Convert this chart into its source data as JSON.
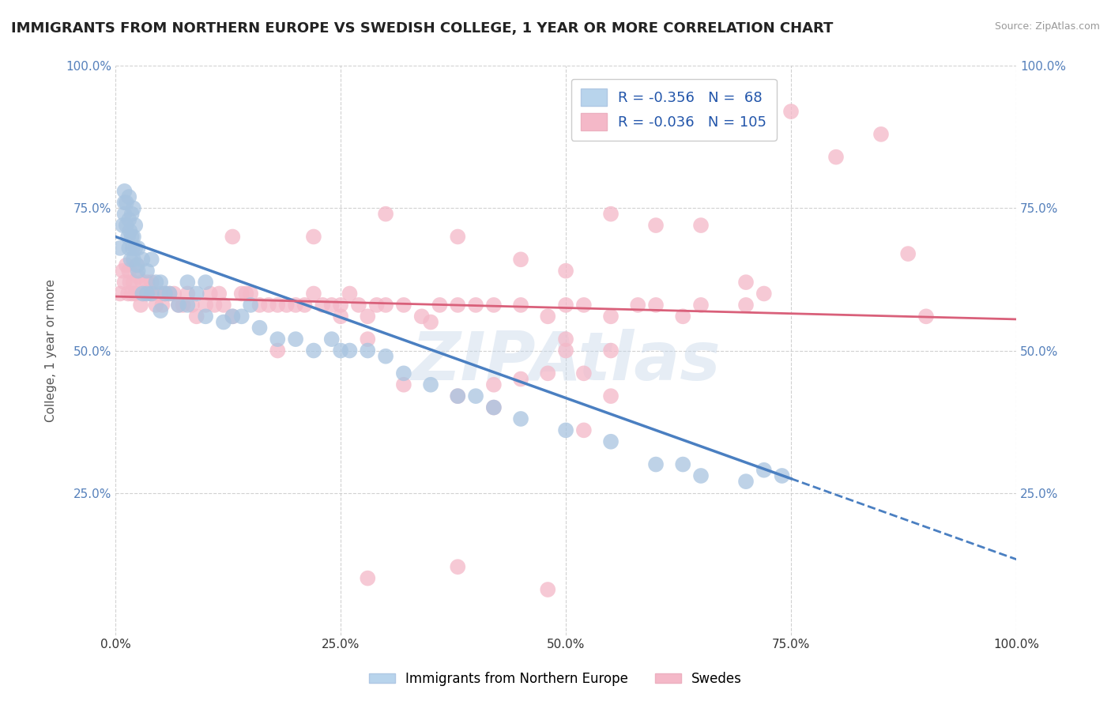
{
  "title": "IMMIGRANTS FROM NORTHERN EUROPE VS SWEDISH COLLEGE, 1 YEAR OR MORE CORRELATION CHART",
  "source": "Source: ZipAtlas.com",
  "ylabel": "College, 1 year or more",
  "xlim": [
    0.0,
    1.0
  ],
  "ylim": [
    0.0,
    1.0
  ],
  "blue_R": -0.356,
  "blue_N": 68,
  "pink_R": -0.036,
  "pink_N": 105,
  "blue_color": "#a8c4e0",
  "pink_color": "#f4b8c8",
  "blue_line_color": "#4a7fc1",
  "pink_line_color": "#d9607a",
  "background_color": "#ffffff",
  "grid_color": "#cccccc",
  "legend_label_blue": "Immigrants from Northern Europe",
  "legend_label_pink": "Swedes",
  "blue_line_x0": 0.0,
  "blue_line_y0": 0.7,
  "blue_line_x1": 0.75,
  "blue_line_y1": 0.275,
  "pink_line_x0": 0.0,
  "pink_line_y0": 0.595,
  "pink_line_x1": 1.0,
  "pink_line_y1": 0.555,
  "blue_scatter_x": [
    0.005,
    0.008,
    0.01,
    0.01,
    0.01,
    0.012,
    0.012,
    0.014,
    0.015,
    0.015,
    0.015,
    0.016,
    0.017,
    0.018,
    0.018,
    0.019,
    0.02,
    0.02,
    0.02,
    0.022,
    0.022,
    0.024,
    0.025,
    0.025,
    0.03,
    0.03,
    0.035,
    0.035,
    0.04,
    0.04,
    0.045,
    0.05,
    0.05,
    0.055,
    0.06,
    0.07,
    0.08,
    0.08,
    0.09,
    0.1,
    0.1,
    0.12,
    0.13,
    0.14,
    0.15,
    0.16,
    0.18,
    0.2,
    0.22,
    0.24,
    0.25,
    0.26,
    0.28,
    0.3,
    0.32,
    0.35,
    0.38,
    0.4,
    0.42,
    0.45,
    0.5,
    0.55,
    0.6,
    0.63,
    0.65,
    0.7,
    0.72,
    0.74
  ],
  "blue_scatter_y": [
    0.68,
    0.72,
    0.74,
    0.76,
    0.78,
    0.72,
    0.76,
    0.7,
    0.68,
    0.73,
    0.77,
    0.71,
    0.66,
    0.7,
    0.74,
    0.68,
    0.66,
    0.7,
    0.75,
    0.68,
    0.72,
    0.65,
    0.64,
    0.68,
    0.6,
    0.66,
    0.6,
    0.64,
    0.6,
    0.66,
    0.62,
    0.57,
    0.62,
    0.6,
    0.6,
    0.58,
    0.58,
    0.62,
    0.6,
    0.56,
    0.62,
    0.55,
    0.56,
    0.56,
    0.58,
    0.54,
    0.52,
    0.52,
    0.5,
    0.52,
    0.5,
    0.5,
    0.5,
    0.49,
    0.46,
    0.44,
    0.42,
    0.42,
    0.4,
    0.38,
    0.36,
    0.34,
    0.3,
    0.3,
    0.28,
    0.27,
    0.29,
    0.28
  ],
  "pink_scatter_x": [
    0.005,
    0.008,
    0.01,
    0.012,
    0.014,
    0.015,
    0.016,
    0.018,
    0.02,
    0.022,
    0.024,
    0.025,
    0.028,
    0.03,
    0.032,
    0.035,
    0.038,
    0.04,
    0.042,
    0.045,
    0.05,
    0.052,
    0.055,
    0.06,
    0.065,
    0.07,
    0.075,
    0.08,
    0.085,
    0.09,
    0.1,
    0.105,
    0.11,
    0.115,
    0.12,
    0.13,
    0.14,
    0.145,
    0.15,
    0.16,
    0.17,
    0.18,
    0.19,
    0.2,
    0.21,
    0.22,
    0.23,
    0.24,
    0.25,
    0.26,
    0.27,
    0.28,
    0.29,
    0.3,
    0.32,
    0.34,
    0.36,
    0.38,
    0.4,
    0.42,
    0.45,
    0.48,
    0.5,
    0.52,
    0.55,
    0.58,
    0.6,
    0.63,
    0.65,
    0.7,
    0.72,
    0.75,
    0.8,
    0.85,
    0.88,
    0.9,
    0.13,
    0.22,
    0.3,
    0.38,
    0.45,
    0.5,
    0.55,
    0.5,
    0.6,
    0.65,
    0.7,
    0.55,
    0.25,
    0.35,
    0.45,
    0.5,
    0.55,
    0.28,
    0.38,
    0.48,
    0.32,
    0.42,
    0.52,
    0.42,
    0.52,
    0.18,
    0.28,
    0.38,
    0.48
  ],
  "pink_scatter_y": [
    0.6,
    0.64,
    0.62,
    0.65,
    0.6,
    0.64,
    0.62,
    0.6,
    0.62,
    0.6,
    0.65,
    0.63,
    0.58,
    0.62,
    0.6,
    0.62,
    0.6,
    0.62,
    0.6,
    0.58,
    0.6,
    0.58,
    0.6,
    0.6,
    0.6,
    0.58,
    0.58,
    0.6,
    0.58,
    0.56,
    0.58,
    0.6,
    0.58,
    0.6,
    0.58,
    0.56,
    0.6,
    0.6,
    0.6,
    0.58,
    0.58,
    0.58,
    0.58,
    0.58,
    0.58,
    0.6,
    0.58,
    0.58,
    0.58,
    0.6,
    0.58,
    0.56,
    0.58,
    0.58,
    0.58,
    0.56,
    0.58,
    0.58,
    0.58,
    0.58,
    0.58,
    0.56,
    0.58,
    0.58,
    0.56,
    0.58,
    0.58,
    0.56,
    0.58,
    0.58,
    0.6,
    0.92,
    0.84,
    0.88,
    0.67,
    0.56,
    0.7,
    0.7,
    0.74,
    0.7,
    0.66,
    0.64,
    0.74,
    0.52,
    0.72,
    0.72,
    0.62,
    0.5,
    0.56,
    0.55,
    0.45,
    0.5,
    0.42,
    0.52,
    0.42,
    0.46,
    0.44,
    0.44,
    0.46,
    0.4,
    0.36,
    0.5,
    0.1,
    0.12,
    0.08
  ]
}
